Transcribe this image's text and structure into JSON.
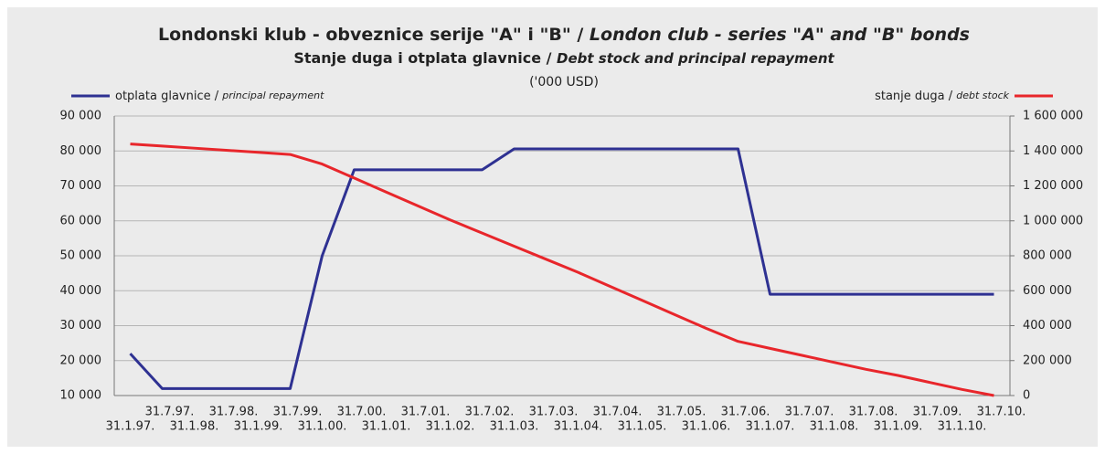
{
  "chart_data": {
    "type": "line",
    "title": "Londonski klub - obveznice serije \"A\" i \"B\" / ",
    "title_en": "London club - series \"A\" and \"B\" bonds",
    "subtitle": "Stanje duga i otplata glavnice / ",
    "subtitle_en": "Debt stock and principal repayment",
    "unit": "('000 USD)",
    "categories": [
      "31.1.97.",
      "31.7.97.",
      "31.1.98.",
      "31.7.98.",
      "31.1.99.",
      "31.7.99.",
      "31.1.00.",
      "31.7.00.",
      "31.1.01.",
      "31.7.01.",
      "31.1.02.",
      "31.7.02.",
      "31.1.03.",
      "31.7.03.",
      "31.1.04.",
      "31.7.04.",
      "31.1.05.",
      "31.7.05.",
      "31.1.06.",
      "31.7.06.",
      "31.1.07.",
      "31.7.07.",
      "31.1.08.",
      "31.7.08.",
      "31.1.09.",
      "31.7.09.",
      "31.1.10.",
      "31.7.10."
    ],
    "series": [
      {
        "name": "otplata glavnice / ",
        "name_en": "principal repayment",
        "color": "#2e3192",
        "axis": "y",
        "values": [
          22000,
          12000,
          12000,
          12000,
          12000,
          12000,
          50000,
          74600,
          74600,
          74600,
          74600,
          74600,
          80600,
          80600,
          80600,
          80600,
          80600,
          80600,
          80600,
          80600,
          39000,
          39000,
          39000,
          39000,
          39000,
          39000,
          39000,
          39000
        ]
      },
      {
        "name": "stanje duga / ",
        "name_en": "debt stock",
        "color": "#e8262b",
        "axis": "y2",
        "values": [
          1440000,
          1428000,
          1416000,
          1404000,
          1392000,
          1380000,
          1325000,
          1245000,
          1165000,
          1085000,
          1005000,
          930000,
          855000,
          780000,
          705000,
          625000,
          545000,
          465000,
          385000,
          310000,
          270000,
          230000,
          190000,
          150000,
          115000,
          75000,
          35000,
          0
        ]
      }
    ],
    "ylim": [
      10000,
      90000
    ],
    "yticks": [
      {
        "value": 10000,
        "label": "10 000"
      },
      {
        "value": 20000,
        "label": "20 000"
      },
      {
        "value": 30000,
        "label": "30 000"
      },
      {
        "value": 40000,
        "label": "40 000"
      },
      {
        "value": 50000,
        "label": "50 000"
      },
      {
        "value": 60000,
        "label": "60 000"
      },
      {
        "value": 70000,
        "label": "70 000"
      },
      {
        "value": 80000,
        "label": "80 000"
      },
      {
        "value": 90000,
        "label": "90 000"
      }
    ],
    "y2lim": [
      0,
      1600000
    ],
    "y2ticks": [
      0,
      {
        "value": 200000,
        "label": "200 000"
      },
      {
        "value": 400000,
        "label": "400 000"
      },
      {
        "value": 600000,
        "label": "600 000"
      },
      {
        "value": 800000,
        "label": "800 000"
      },
      {
        "value": 1000000,
        "label": "1 000 000"
      },
      {
        "value": 1200000,
        "label": "1 200 000"
      },
      {
        "value": 1400000,
        "label": "1 400 000"
      },
      {
        "value": 1600000,
        "label": "1 600 000"
      }
    ],
    "grid": true
  }
}
